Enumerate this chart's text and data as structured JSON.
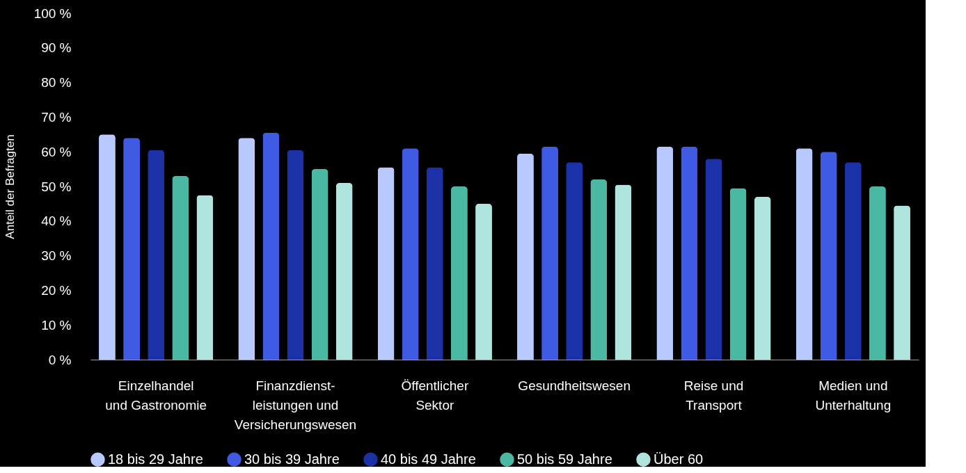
{
  "chart_data": {
    "type": "bar",
    "ylabel": "Anteil der Befragten",
    "categories": [
      "Einzelhandel\nund Gastronomie",
      "Finanzdienst-\nleistungen und\nVersicherungswesen",
      "Öffentlicher\nSektor",
      "Gesundheitswesen",
      "Reise und\nTransport",
      "Medien und\nUnterhaltung"
    ],
    "series": [
      {
        "name": "18 bis 29 Jahre",
        "color": "#b8c9ff",
        "values": [
          65,
          64,
          55.5,
          59.5,
          61.5,
          61
        ]
      },
      {
        "name": "30 bis 39 Jahre",
        "color": "#3f5be3",
        "values": [
          64,
          65.5,
          61,
          61.5,
          61.5,
          60
        ]
      },
      {
        "name": "40 bis 49 Jahre",
        "color": "#1c30a8",
        "values": [
          60.5,
          60.5,
          55.5,
          57,
          58,
          57
        ]
      },
      {
        "name": "50 bis 59 Jahre",
        "color": "#4bb8a4",
        "values": [
          53,
          55,
          50,
          52,
          49.5,
          50
        ]
      },
      {
        "name": "Über 60",
        "color": "#b0e4de",
        "values": [
          47.5,
          51,
          45,
          50.5,
          47,
          44.5
        ]
      }
    ],
    "ylim": [
      0,
      100
    ],
    "yticks": [
      {
        "value": 0,
        "label": "0 %"
      },
      {
        "value": 10,
        "label": "10 %"
      },
      {
        "value": 20,
        "label": "20 %"
      },
      {
        "value": 30,
        "label": "30 %"
      },
      {
        "value": 40,
        "label": "40 %"
      },
      {
        "value": 50,
        "label": "50 %"
      },
      {
        "value": 60,
        "label": "60 %"
      },
      {
        "value": 70,
        "label": "70 %"
      },
      {
        "value": 80,
        "label": "80 %"
      },
      {
        "value": 90,
        "label": "90 %"
      },
      {
        "value": 100,
        "label": "100 %"
      }
    ],
    "grid": false,
    "legend": "bottom"
  }
}
